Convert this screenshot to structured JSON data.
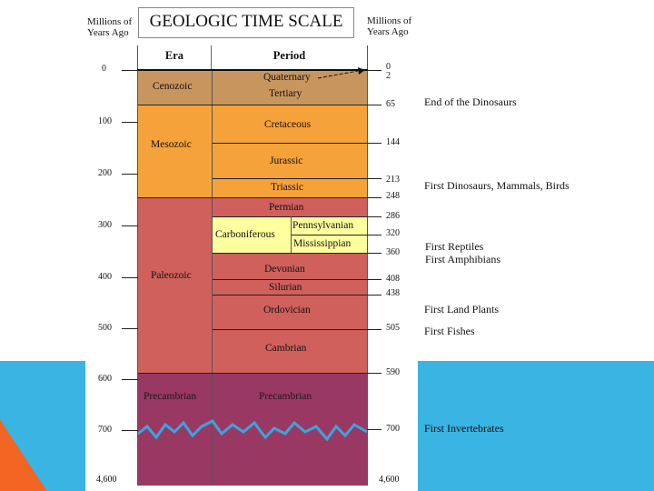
{
  "title": "GEOLOGIC TIME SCALE",
  "left_axis_label": [
    "Millions of",
    "Years Ago"
  ],
  "right_axis_label": [
    "Millions of",
    "Years Ago"
  ],
  "header": {
    "era": "Era",
    "period": "Period"
  },
  "left_ticks": [
    "0",
    "100",
    "200",
    "300",
    "400",
    "500",
    "600",
    "700",
    "4,600"
  ],
  "right_ticks": [
    "0",
    "2",
    "65",
    "144",
    "213",
    "248",
    "286",
    "320",
    "360",
    "408",
    "438",
    "505",
    "590",
    "700",
    "4,600"
  ],
  "eras": [
    "Cenozoic",
    "Mesozoic",
    "Paleozoic",
    "Precambrian"
  ],
  "periods": [
    "Quaternary",
    "Tertiary",
    "Cretaceous",
    "Jurassic",
    "Triassic",
    "Permian",
    "Carboniferous",
    "Pennsylvanian",
    "Mississippian",
    "Devonian",
    "Silurian",
    "Ordovician",
    "Cambrian",
    "Precambrian"
  ],
  "events": [
    "End of the Dinosaurs",
    "First Dinosaurs, Mammals, Birds",
    "First Reptiles",
    "First Amphibians",
    "First Land Plants",
    "First Fishes",
    "First Invertebrates"
  ],
  "colors": {
    "cenozoic": "#c9955f",
    "mesozoic": "#f6a23a",
    "paleozoic": "#d0605c",
    "carboniferous": "#ffff9e",
    "precambrian": "#9a3864",
    "water": "#39b4e3",
    "accent_orange": "#f26522"
  }
}
